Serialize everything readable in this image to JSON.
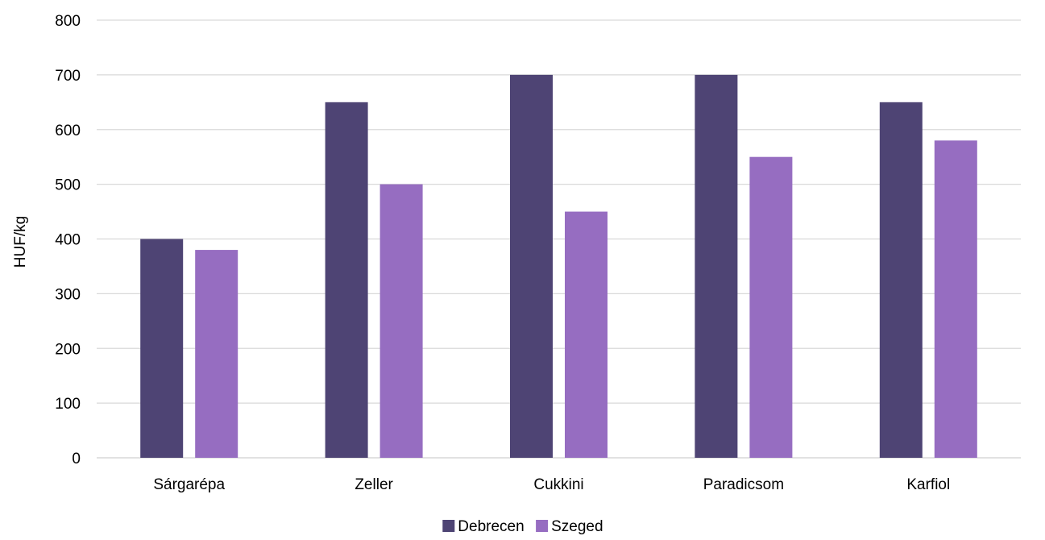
{
  "chart_data": {
    "type": "bar",
    "title": "",
    "xlabel": "",
    "ylabel": "HUF/kg",
    "ylim": [
      0,
      800
    ],
    "yticks": [
      0,
      100,
      200,
      300,
      400,
      500,
      600,
      700,
      800
    ],
    "grid": true,
    "legend_position": "bottom",
    "categories": [
      "Sárgarépa",
      "Zeller",
      "Cukkini",
      "Paradicsom",
      "Karfiol"
    ],
    "series": [
      {
        "name": "Debrecen",
        "color": "#4e4474",
        "values": [
          400,
          650,
          700,
          700,
          650
        ]
      },
      {
        "name": "Szeged",
        "color": "#966dc1",
        "values": [
          380,
          500,
          450,
          550,
          580
        ]
      }
    ]
  }
}
